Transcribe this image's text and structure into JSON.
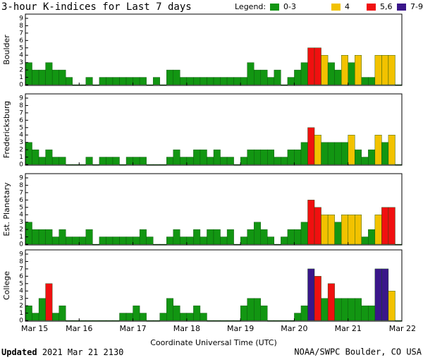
{
  "chart_data": {
    "type": "bar",
    "title": "3-hour K-indices for Last 7 days",
    "legend": {
      "title": "Legend:",
      "items": [
        {
          "label": "0-3",
          "color": "#129612"
        },
        {
          "label": "4",
          "color": "#f2c200"
        },
        {
          "label": "5,6",
          "color": "#f01010"
        },
        {
          "label": "7-9",
          "color": "#3a168a"
        }
      ]
    },
    "xticks": [
      "Mar 15",
      "Mar 16",
      "Mar 17",
      "Mar 18",
      "Mar 19",
      "Mar 20",
      "Mar 21",
      "Mar 22"
    ],
    "xlabel": "Coordinate Universal Time (UTC)",
    "ylim": [
      0,
      9
    ],
    "yticks": [
      0,
      1,
      2,
      3,
      4,
      5,
      6,
      7,
      8,
      9
    ],
    "panels": [
      {
        "ylabel": "Boulder",
        "values": [
          3,
          2,
          2,
          3,
          2,
          2,
          1,
          0,
          0,
          1,
          0,
          1,
          1,
          1,
          1,
          1,
          1,
          1,
          0,
          1,
          0,
          2,
          2,
          1,
          1,
          1,
          1,
          1,
          1,
          1,
          1,
          1,
          1,
          3,
          2,
          2,
          1,
          2,
          0,
          1,
          2,
          3,
          5,
          5,
          4,
          3,
          2,
          4,
          3,
          4,
          1,
          1,
          4,
          4,
          4,
          0
        ]
      },
      {
        "ylabel": "Fredericksburg",
        "values": [
          3,
          2,
          1,
          2,
          1,
          1,
          0,
          0,
          0,
          1,
          0,
          1,
          1,
          1,
          0,
          1,
          1,
          1,
          0,
          0,
          0,
          1,
          2,
          1,
          1,
          2,
          2,
          1,
          2,
          1,
          1,
          0,
          1,
          2,
          2,
          2,
          2,
          1,
          1,
          2,
          2,
          3,
          5,
          4,
          3,
          3,
          3,
          3,
          4,
          2,
          1,
          2,
          4,
          3,
          4,
          0
        ]
      },
      {
        "ylabel": "Est. Planetary",
        "values": [
          3,
          2,
          2,
          2,
          1,
          2,
          1,
          1,
          1,
          2,
          0,
          1,
          1,
          1,
          1,
          1,
          1,
          2,
          1,
          0,
          0,
          1,
          2,
          1,
          1,
          2,
          1,
          2,
          2,
          1,
          2,
          0,
          1,
          2,
          3,
          2,
          1,
          0,
          1,
          2,
          2,
          3,
          6,
          5,
          4,
          4,
          3,
          4,
          4,
          4,
          1,
          2,
          4,
          5,
          5,
          0
        ]
      },
      {
        "ylabel": "College",
        "values": [
          2,
          1,
          3,
          5,
          1,
          2,
          0,
          0,
          0,
          0,
          0,
          0,
          0,
          0,
          1,
          1,
          2,
          1,
          0,
          0,
          1,
          3,
          2,
          1,
          1,
          2,
          1,
          0,
          0,
          0,
          0,
          0,
          2,
          3,
          3,
          2,
          0,
          0,
          0,
          0,
          1,
          2,
          7,
          6,
          3,
          5,
          3,
          3,
          3,
          3,
          2,
          2,
          7,
          7,
          4,
          0
        ]
      }
    ],
    "footer": {
      "updated": "Updated",
      "time": "2021 Mar 21 2130",
      "source": "NOAA/SWPC Boulder, CO USA"
    }
  }
}
